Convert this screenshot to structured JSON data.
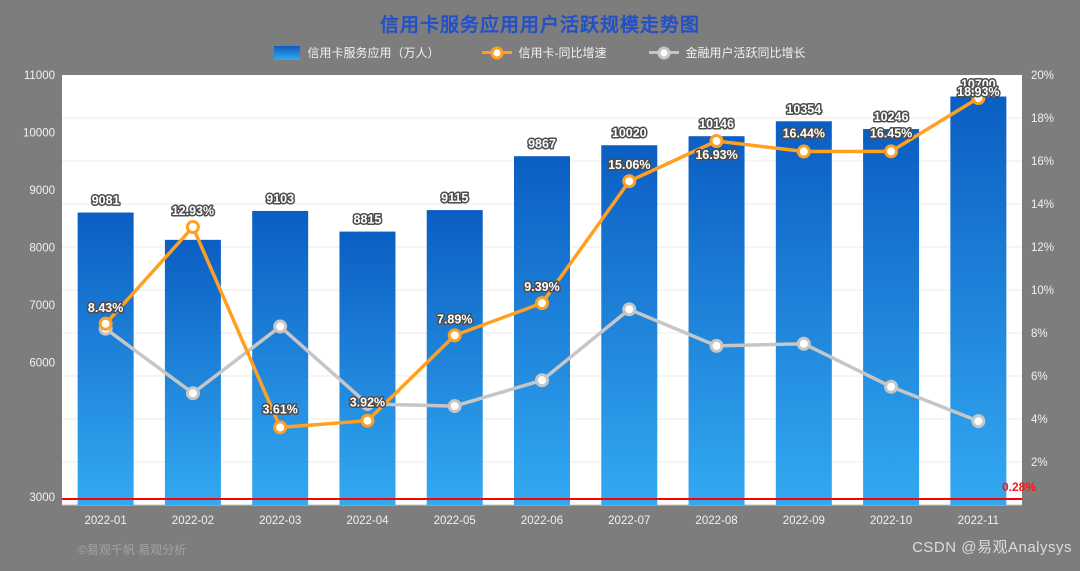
{
  "page": {
    "background_color": "#7d7d7d",
    "watermark_left": "©易观千帆 易观分析",
    "watermark_right": "CSDN @易观Analysys"
  },
  "chart_data": {
    "type": "bar",
    "combo": "bar+line",
    "title": "信用卡服务应用用户活跃规模走势图",
    "title_color": "#2150c8",
    "legend_position": "top",
    "grid": true,
    "categories": [
      "2022-01",
      "2022-02",
      "2022-03",
      "2022-04",
      "2022-05",
      "2022-06",
      "2022-07",
      "2022-08",
      "2022-09",
      "2022-10",
      "2022-11"
    ],
    "series": [
      {
        "name": "信用卡服务应用（万人）",
        "type": "bar",
        "y_axis": "left",
        "colors": {
          "top": "#0b5ec2",
          "bottom": "#33a9f2"
        },
        "values": [
          9081,
          8700,
          9103,
          8815,
          9115,
          9867,
          10020,
          10146,
          10354,
          10246,
          10700
        ],
        "labels": [
          "9081",
          "",
          "9103",
          "8815",
          "9115",
          "9867",
          "10020",
          "10146",
          "10354",
          "10246",
          "10700"
        ]
      },
      {
        "name": "信用卡-同比增速",
        "type": "line",
        "y_axis": "right",
        "color": "#ffa022",
        "values": [
          8.43,
          12.93,
          3.61,
          3.92,
          7.89,
          9.39,
          15.06,
          16.93,
          16.44,
          16.45,
          18.93
        ],
        "labels": [
          "8.43%",
          "12.93%",
          "3.61%",
          "3.92%",
          "7.89%",
          "9.39%",
          "15.06%",
          "16.93%",
          "16.44%",
          "16.45%",
          "18.93%"
        ]
      },
      {
        "name": "金融用户活跃同比增长",
        "type": "line",
        "y_axis": "right",
        "color": "#c6c6c6",
        "values": [
          8.2,
          5.2,
          8.3,
          4.7,
          4.6,
          5.8,
          9.1,
          7.4,
          7.5,
          5.5,
          3.9
        ],
        "labels": []
      }
    ],
    "left_axis": {
      "tick_labels": [
        "11000",
        "10000",
        "9000",
        "8000",
        "7000",
        "6000",
        "3000"
      ],
      "plot_min": 5000,
      "plot_max": 11000
    },
    "right_axis": {
      "tick_labels": [
        "20%",
        "18%",
        "16%",
        "14%",
        "12%",
        "10%",
        "8%",
        "6%",
        "4%",
        "2%"
      ],
      "min": 0,
      "max": 20
    },
    "reference_line": {
      "value": 0.28,
      "label": "0.28%",
      "color": "#ff0000"
    }
  }
}
